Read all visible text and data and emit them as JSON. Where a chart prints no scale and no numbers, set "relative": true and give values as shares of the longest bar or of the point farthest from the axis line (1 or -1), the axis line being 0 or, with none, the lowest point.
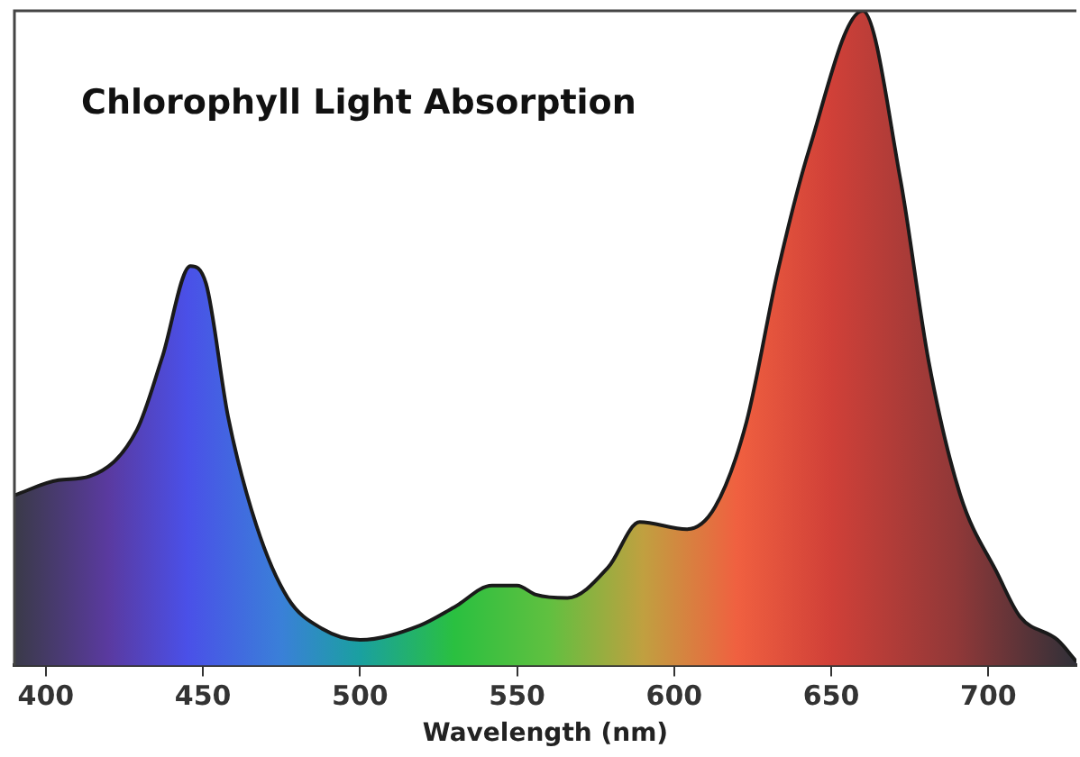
{
  "chart_data": {
    "type": "area",
    "title": "Chlorophyll Light Absorption",
    "xlabel": "Wavelength (nm)",
    "relative": true,
    "xlim": [
      390,
      728
    ],
    "xticks": [
      400,
      450,
      500,
      550,
      600,
      650,
      700
    ],
    "grid": false,
    "legend": false,
    "marker": "none",
    "series": [
      {
        "color": "#1a1a1a",
        "x": [
          390,
          404,
          414,
          429,
          437,
          446,
          451,
          458,
          467,
          477,
          488,
          500,
          519,
          530,
          542,
          550,
          556,
          566,
          579,
          589,
          604,
          613,
          623,
          633,
          643,
          660,
          672,
          681,
          691,
          703,
          710,
          722,
          728
        ],
        "values": [
          0.26,
          0.283,
          0.289,
          0.36,
          0.47,
          0.61,
          0.583,
          0.38,
          0.214,
          0.103,
          0.056,
          0.039,
          0.061,
          0.089,
          0.122,
          0.122,
          0.108,
          0.103,
          0.15,
          0.219,
          0.208,
          0.242,
          0.372,
          0.603,
          0.789,
          1,
          0.742,
          0.464,
          0.261,
          0.139,
          0.075,
          0.039,
          0.006
        ]
      }
    ]
  }
}
